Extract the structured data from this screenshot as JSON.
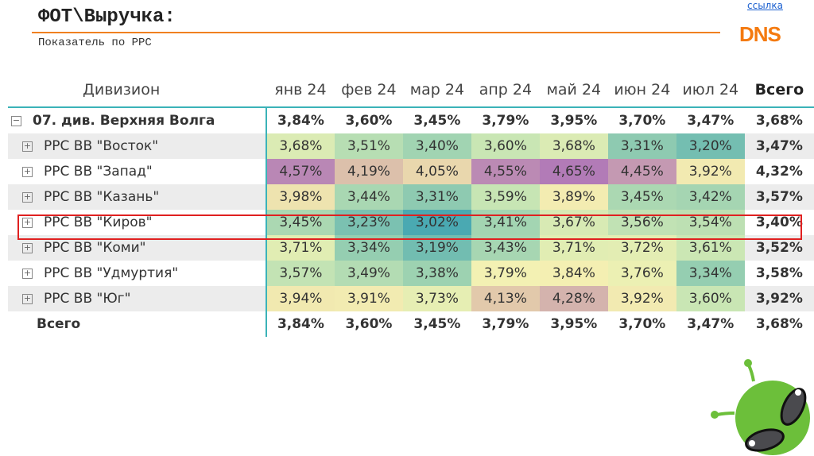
{
  "header": {
    "title": "ФОТ\\Выручка:",
    "subtitle": "Показатель по РРС",
    "link": "ссылка",
    "logo": "DNS"
  },
  "colors": {
    "accent_line": "#f08020",
    "highlight_border": "#e02020",
    "scale": [
      [
        3.02,
        "#4aa9b2"
      ],
      [
        3.35,
        "#97cfb1"
      ],
      [
        3.6,
        "#c9e6b4"
      ],
      [
        3.8,
        "#f5f2b3"
      ],
      [
        3.95,
        "#f1e8b0"
      ],
      [
        4.15,
        "#e0c6aa"
      ],
      [
        4.65,
        "#b27bb7"
      ]
    ]
  },
  "table": {
    "columns": [
      "Дивизион",
      "янв 24",
      "фев 24",
      "мар 24",
      "апр 24",
      "май 24",
      "июн 24",
      "июл 24",
      "Всего"
    ],
    "division": {
      "label": "07. див. Верхняя Волга",
      "values": [
        "3,84%",
        "3,60%",
        "3,45%",
        "3,79%",
        "3,95%",
        "3,70%",
        "3,47%"
      ],
      "total": "3,68%"
    },
    "rows": [
      {
        "label": "РРС ВВ \"Восток\"",
        "values": [
          "3,68%",
          "3,51%",
          "3,40%",
          "3,60%",
          "3,68%",
          "3,31%",
          "3,20%"
        ],
        "total": "3,47%"
      },
      {
        "label": "РРС ВВ \"Запад\"",
        "values": [
          "4,57%",
          "4,19%",
          "4,05%",
          "4,55%",
          "4,65%",
          "4,45%",
          "3,92%"
        ],
        "total": "4,32%"
      },
      {
        "label": "РРС ВВ \"Казань\"",
        "values": [
          "3,98%",
          "3,44%",
          "3,31%",
          "3,59%",
          "3,89%",
          "3,45%",
          "3,42%"
        ],
        "total": "3,57%"
      },
      {
        "label": "РРС ВВ \"Киров\"",
        "values": [
          "3,45%",
          "3,23%",
          "3,02%",
          "3,41%",
          "3,67%",
          "3,56%",
          "3,54%"
        ],
        "total": "3,40%",
        "highlighted": true
      },
      {
        "label": "РРС ВВ \"Коми\"",
        "values": [
          "3,71%",
          "3,34%",
          "3,19%",
          "3,43%",
          "3,71%",
          "3,72%",
          "3,61%"
        ],
        "total": "3,52%"
      },
      {
        "label": "РРС ВВ \"Удмуртия\"",
        "values": [
          "3,57%",
          "3,49%",
          "3,38%",
          "3,79%",
          "3,84%",
          "3,76%",
          "3,34%"
        ],
        "total": "3,58%"
      },
      {
        "label": "РРС ВВ \"Юг\"",
        "values": [
          "3,94%",
          "3,91%",
          "3,73%",
          "4,13%",
          "4,28%",
          "3,92%",
          "3,60%"
        ],
        "total": "3,92%"
      }
    ],
    "grand_total": {
      "label": "Всего",
      "values": [
        "3,84%",
        "3,60%",
        "3,45%",
        "3,79%",
        "3,95%",
        "3,70%",
        "3,47%"
      ],
      "total": "3,68%"
    }
  }
}
